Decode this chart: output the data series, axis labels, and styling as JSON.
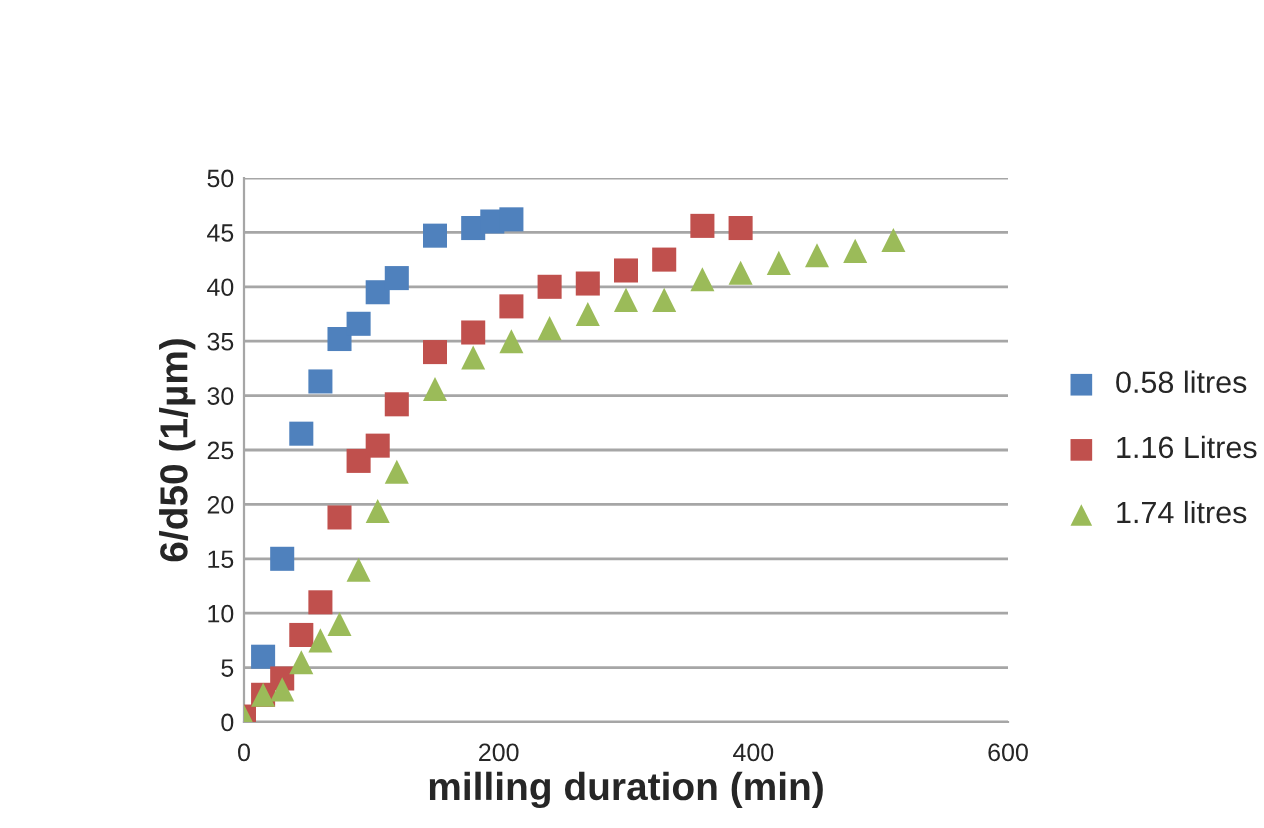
{
  "chart_data": {
    "type": "scatter",
    "xlabel": "milling duration (min)",
    "ylabel": "6/d50 (1/µm)",
    "xlim": [
      0,
      600
    ],
    "xticks": [
      0,
      200,
      400,
      600
    ],
    "ylim": [
      0,
      50
    ],
    "yticks": [
      0,
      5,
      10,
      15,
      20,
      25,
      30,
      35,
      40,
      45,
      50
    ],
    "grid": "y",
    "legend": "right",
    "series": [
      {
        "name": "0.58 litres",
        "color": "#4f81bd",
        "marker": "square",
        "x": [
          15,
          30,
          45,
          60,
          75,
          90,
          105,
          120,
          150,
          180,
          195,
          210
        ],
        "values": [
          6,
          15,
          26.5,
          31.3,
          35.2,
          36.6,
          39.5,
          40.8,
          44.7,
          45.4,
          46,
          46.2
        ]
      },
      {
        "name": "1.16 Litres",
        "color": "#c0504d",
        "marker": "square",
        "x": [
          0,
          15,
          30,
          45,
          60,
          75,
          90,
          105,
          120,
          150,
          180,
          210,
          240,
          270,
          300,
          330,
          360,
          390
        ],
        "values": [
          0.5,
          2.5,
          4,
          8,
          11,
          18.8,
          24,
          25.4,
          29.2,
          34,
          35.8,
          38.2,
          40,
          40.3,
          41.5,
          42.5,
          45.6,
          45.4
        ]
      },
      {
        "name": "1.74 litres",
        "color": "#9bbb59",
        "marker": "triangle",
        "x": [
          0,
          15,
          30,
          45,
          60,
          75,
          90,
          105,
          120,
          150,
          180,
          210,
          240,
          270,
          300,
          330,
          360,
          390,
          420,
          450,
          480,
          510
        ],
        "values": [
          0.5,
          2.5,
          3,
          5.5,
          7.5,
          9,
          14,
          19.4,
          23,
          30.6,
          33.5,
          35,
          36.2,
          37.5,
          38.8,
          38.8,
          40.7,
          41.3,
          42.2,
          42.9,
          43.3,
          44.3
        ]
      }
    ]
  }
}
